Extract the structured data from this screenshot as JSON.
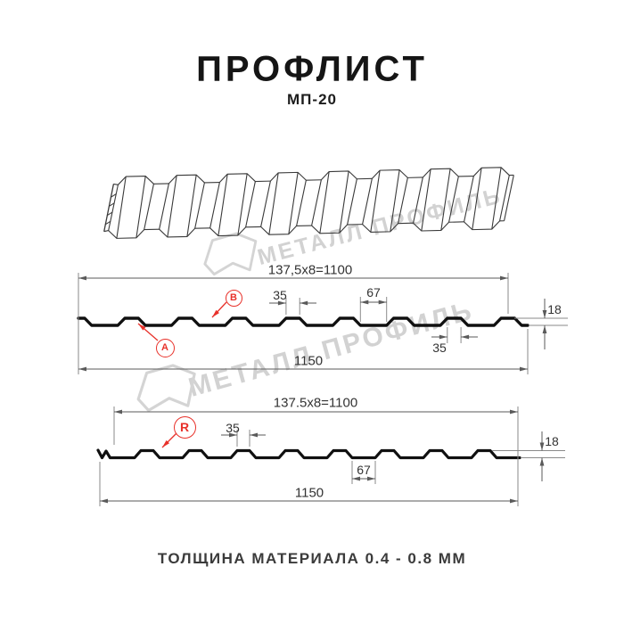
{
  "header": {
    "title": "ПРОФЛИСТ",
    "subtitle": "МП-20"
  },
  "watermark": {
    "brand_text": "МЕТАЛЛ ПРОФИЛЬ"
  },
  "profile_top": {
    "pitch_formula": "137,5x8=1100",
    "crest_width_top": "35",
    "valley_width": "67",
    "height": "18",
    "crest_width_bottom": "35",
    "overall_width": "1150",
    "point_label_a": "A",
    "point_label_b": "B"
  },
  "profile_bottom": {
    "pitch_formula": "137.5x8=1100",
    "crest_width": "35",
    "height": "18",
    "valley_width": "67",
    "overall_width": "1150",
    "point_label_r": "R"
  },
  "footer": {
    "material_thickness": "ТОЛЩИНА МАТЕРИАЛА 0.4 - 0.8 ММ"
  },
  "colors": {
    "accent_red": "#e8312a",
    "drawing_black": "#101010",
    "sketch_gray": "#3a3a3a",
    "dim_line": "#5a5a5a",
    "ext_line": "#8a8a8a",
    "watermark_gray": "#d4d4d4"
  }
}
